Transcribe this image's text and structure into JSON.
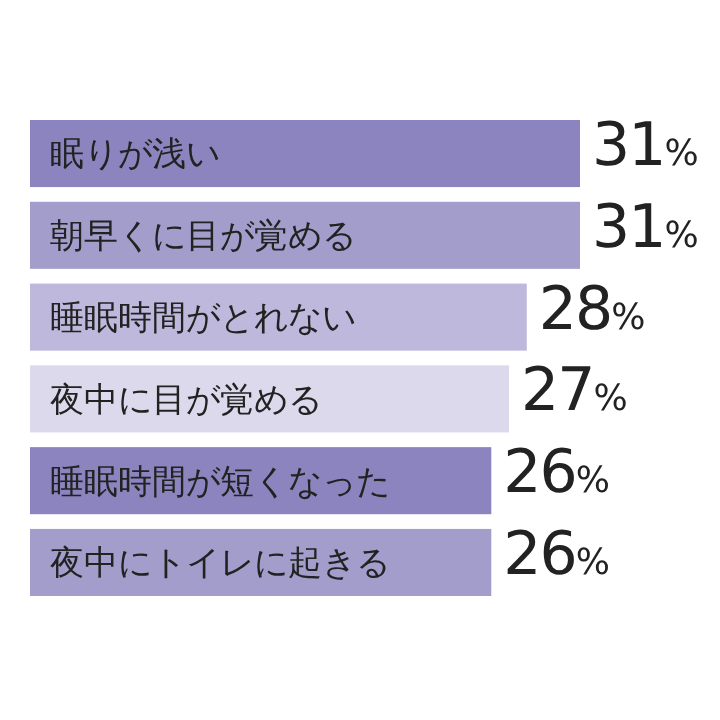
{
  "chart_data": {
    "type": "bar",
    "orientation": "horizontal",
    "categories": [
      "眠りが浅い",
      "朝早くに目が覚める",
      "睡眠時間がとれない",
      "夜中に目が覚める",
      "睡眠時間が短くなった",
      "夜中にトイレに起きる"
    ],
    "values": [
      31,
      31,
      28,
      27,
      26,
      26
    ],
    "colors": [
      "#8b84bf",
      "#a39dcc",
      "#bdb8dc",
      "#dcd9ec",
      "#8b84bf",
      "#a39dcc"
    ],
    "value_labels": [
      "31%",
      "31%",
      "28%",
      "27%",
      "26%",
      "26%"
    ]
  }
}
